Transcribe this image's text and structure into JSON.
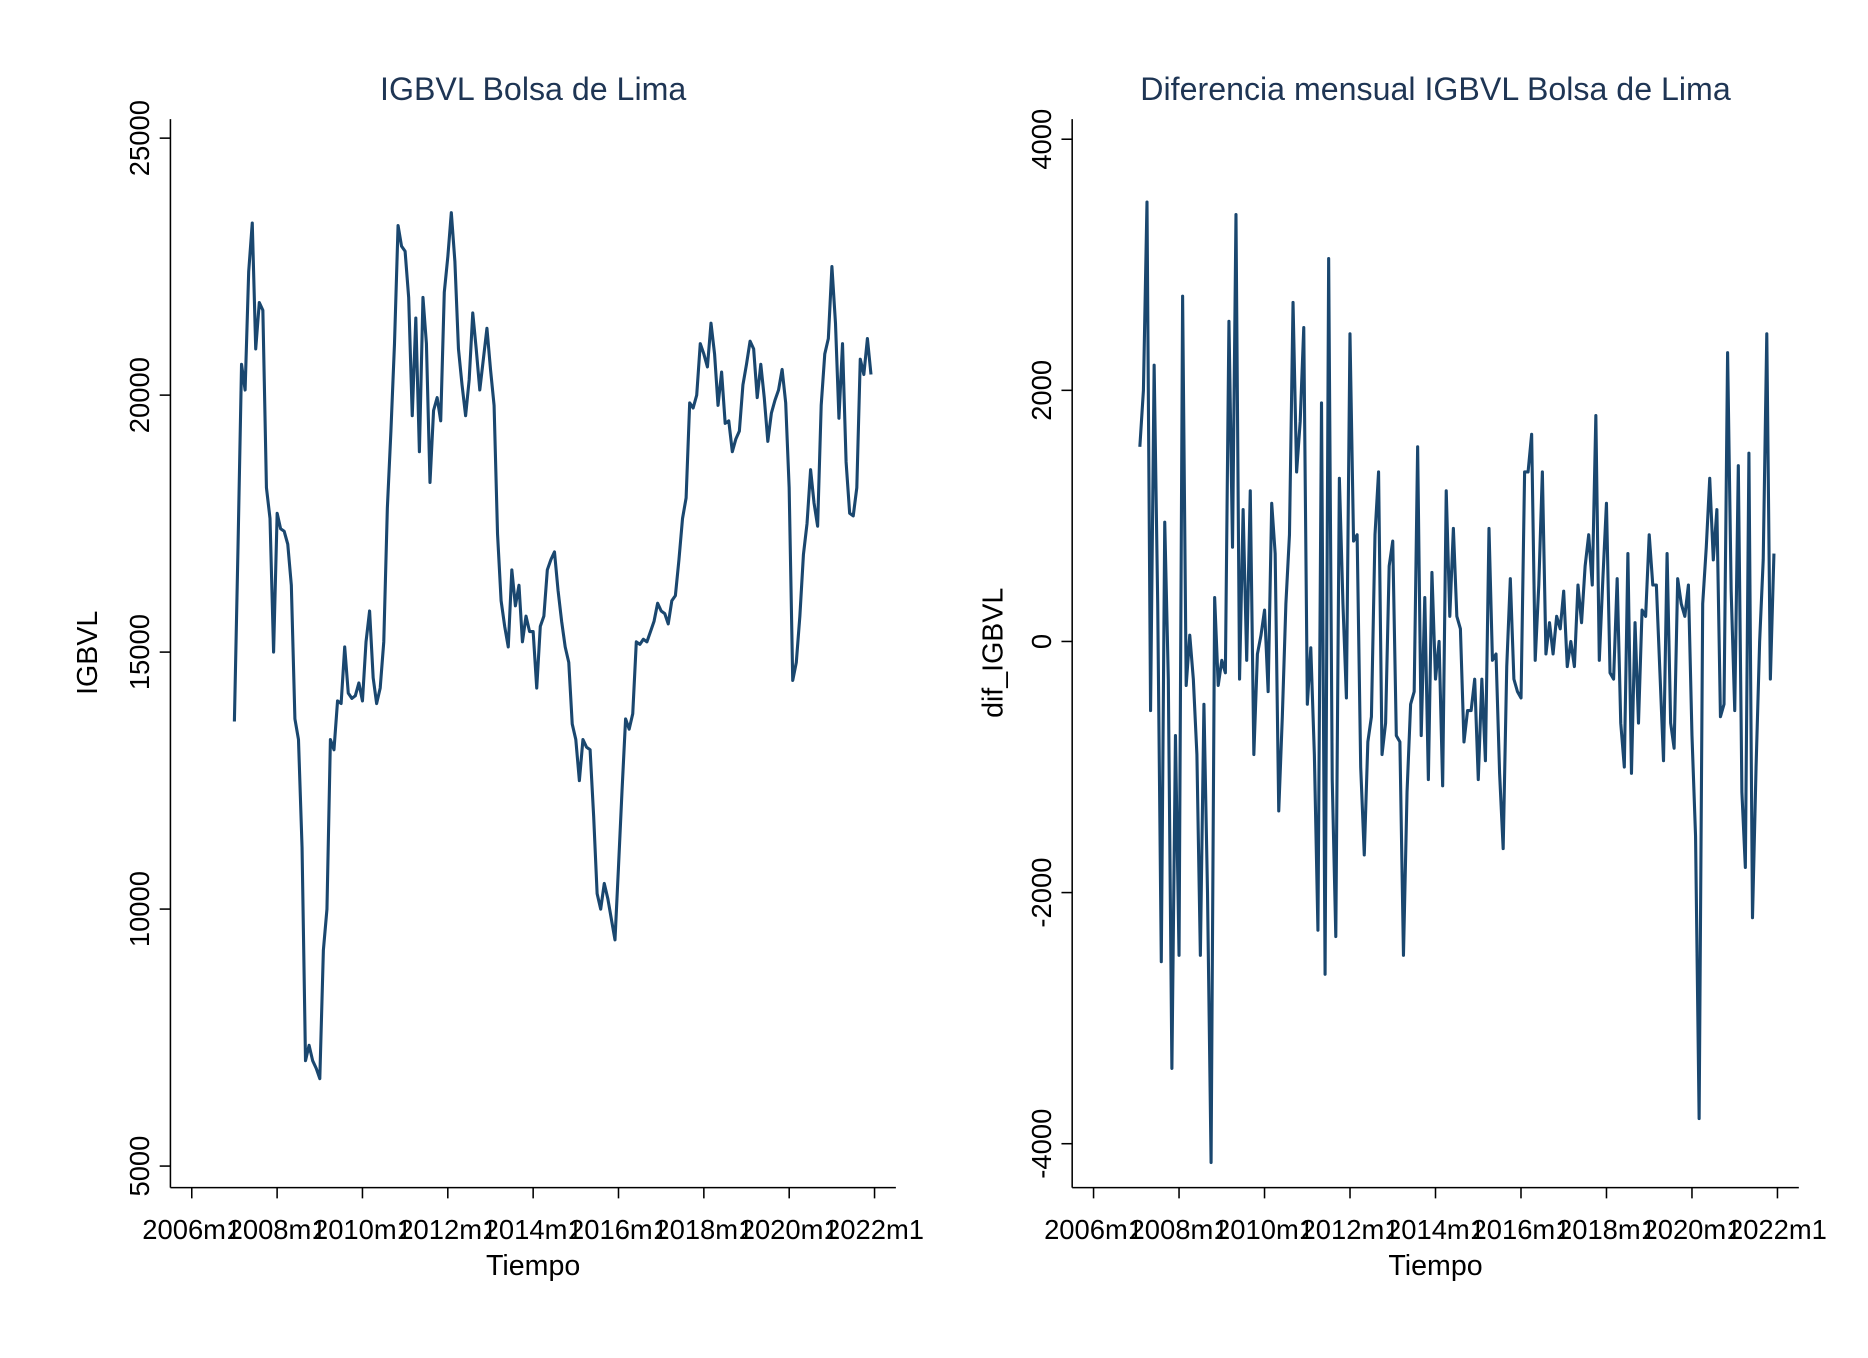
{
  "chart_data": [
    {
      "type": "line",
      "title": "IGBVL Bolsa de Lima",
      "xlabel": "Tiempo",
      "ylabel": "IGBVL",
      "color": "#1a476f",
      "xlim": [
        "2005m7",
        "2022m7"
      ],
      "xticks": [
        "2006m1",
        "2008m1",
        "2010m1",
        "2012m1",
        "2014m1",
        "2016m1",
        "2018m1",
        "2020m1",
        "2022m1"
      ],
      "ylim": [
        4580,
        25370
      ],
      "yticks": [
        5000,
        10000,
        15000,
        20000,
        25000
      ],
      "x": [
        "2007m1",
        "2007m2",
        "2007m3",
        "2007m4",
        "2007m5",
        "2007m6",
        "2007m7",
        "2007m8",
        "2007m9",
        "2007m10",
        "2007m11",
        "2007m12",
        "2008m1",
        "2008m2",
        "2008m3",
        "2008m4",
        "2008m5",
        "2008m6",
        "2008m7",
        "2008m8",
        "2008m9",
        "2008m10",
        "2008m11",
        "2008m12",
        "2009m1",
        "2009m2",
        "2009m3",
        "2009m4",
        "2009m5",
        "2009m6",
        "2009m7",
        "2009m8",
        "2009m9",
        "2009m10",
        "2009m11",
        "2009m12",
        "2010m1",
        "2010m2",
        "2010m3",
        "2010m4",
        "2010m5",
        "2010m6",
        "2010m7",
        "2010m8",
        "2010m9",
        "2010m10",
        "2010m11",
        "2010m12",
        "2011m1",
        "2011m2",
        "2011m3",
        "2011m4",
        "2011m5",
        "2011m6",
        "2011m7",
        "2011m8",
        "2011m9",
        "2011m10",
        "2011m11",
        "2011m12",
        "2012m1",
        "2012m2",
        "2012m3",
        "2012m4",
        "2012m5",
        "2012m6",
        "2012m7",
        "2012m8",
        "2012m9",
        "2012m10",
        "2012m11",
        "2012m12",
        "2013m1",
        "2013m2",
        "2013m3",
        "2013m4",
        "2013m5",
        "2013m6",
        "2013m7",
        "2013m8",
        "2013m9",
        "2013m10",
        "2013m11",
        "2013m12",
        "2014m1",
        "2014m2",
        "2014m3",
        "2014m4",
        "2014m5",
        "2014m6",
        "2014m7",
        "2014m8",
        "2014m9",
        "2014m10",
        "2014m11",
        "2014m12",
        "2015m1",
        "2015m2",
        "2015m3",
        "2015m4",
        "2015m5",
        "2015m6",
        "2015m7",
        "2015m8",
        "2015m9",
        "2015m10",
        "2015m11",
        "2015m12",
        "2016m1",
        "2016m2",
        "2016m3",
        "2016m4",
        "2016m5",
        "2016m6",
        "2016m7",
        "2016m8",
        "2016m9",
        "2016m10",
        "2016m11",
        "2016m12",
        "2017m1",
        "2017m2",
        "2017m3",
        "2017m4",
        "2017m5",
        "2017m6",
        "2017m7",
        "2017m8",
        "2017m9",
        "2017m10",
        "2017m11",
        "2017m12",
        "2018m1",
        "2018m2",
        "2018m3",
        "2018m4",
        "2018m5",
        "2018m6",
        "2018m7",
        "2018m8",
        "2018m9",
        "2018m10",
        "2018m11",
        "2018m12",
        "2019m1",
        "2019m2",
        "2019m3",
        "2019m4",
        "2019m5",
        "2019m6",
        "2019m7",
        "2019m8",
        "2019m9",
        "2019m10",
        "2019m11",
        "2019m12",
        "2020m1",
        "2020m2",
        "2020m3",
        "2020m4",
        "2020m5",
        "2020m6",
        "2020m7",
        "2020m8",
        "2020m9",
        "2020m10",
        "2020m11",
        "2020m12",
        "2021m1",
        "2021m2",
        "2021m3",
        "2021m4",
        "2021m5",
        "2021m6",
        "2021m7",
        "2021m8",
        "2021m9",
        "2021m10",
        "2021m11",
        "2021m12"
      ],
      "values": [
        13650,
        17000,
        20600,
        20100,
        22400,
        23350,
        20900,
        21800,
        21650,
        18200,
        17600,
        15000,
        17700,
        17400,
        17350,
        17100,
        16300,
        13700,
        13300,
        11200,
        7050,
        7350,
        7050,
        6900,
        6700,
        9200,
        10000,
        13300,
        13100,
        14050,
        14000,
        15100,
        14200,
        14100,
        14150,
        14400,
        14050,
        15200,
        15800,
        14500,
        14000,
        14300,
        15200,
        17800,
        19300,
        21000,
        23300,
        22900,
        22800,
        21900,
        19600,
        21500,
        18900,
        21900,
        21000,
        18300,
        19700,
        19950,
        19500,
        22000,
        22700,
        23550,
        22600,
        20900,
        20200,
        19600,
        20300,
        21600,
        20900,
        20100,
        20700,
        21300,
        20500,
        19800,
        17300,
        16000,
        15500,
        15100,
        16600,
        15900,
        16300,
        15200,
        15700,
        15400,
        15400,
        14300,
        15500,
        15700,
        16600,
        16800,
        16950,
        16200,
        15600,
        15100,
        14800,
        13600,
        13300,
        12500,
        13300,
        13150,
        13100,
        11800,
        10300,
        10000,
        10500,
        10200,
        9800,
        9400,
        10800,
        12300,
        13700,
        13500,
        13800,
        15200,
        15150,
        15250,
        15200,
        15400,
        15600,
        15950,
        15800,
        15750,
        15550,
        16000,
        16100,
        16800,
        17600,
        18000,
        19850,
        19750,
        20000,
        21000,
        20800,
        20550,
        21400,
        20800,
        19800,
        20450,
        19450,
        19500,
        18900,
        19150,
        19300,
        20200,
        20600,
        21050,
        20900,
        19950,
        20600,
        19950,
        19100,
        19650,
        19900,
        20100,
        20500,
        19850,
        18200,
        14450,
        14800,
        15700,
        16900,
        17500,
        18550,
        17900,
        17450,
        19800,
        20800,
        21100,
        22500,
        21400,
        19550,
        21000,
        18700,
        17700,
        17650,
        18200,
        20700,
        20400,
        21100,
        20400
      ]
    },
    {
      "type": "line",
      "title": "Diferencia mensual IGBVL Bolsa de Lima",
      "xlabel": "Tiempo",
      "ylabel": "dif_IGBVL",
      "color": "#1a476f",
      "xlim": [
        "2005m7",
        "2022m7"
      ],
      "xticks": [
        "2006m1",
        "2008m1",
        "2010m1",
        "2012m1",
        "2014m1",
        "2016m1",
        "2018m1",
        "2020m1",
        "2022m1"
      ],
      "ylim": [
        -4350,
        4160
      ],
      "yticks": [
        -4000,
        -2000,
        0,
        2000,
        4000
      ],
      "x": [
        "2007m2",
        "2007m3",
        "2007m4",
        "2007m5",
        "2007m6",
        "2007m7",
        "2007m8",
        "2007m9",
        "2007m10",
        "2007m11",
        "2007m12",
        "2008m1",
        "2008m2",
        "2008m3",
        "2008m4",
        "2008m5",
        "2008m6",
        "2008m7",
        "2008m8",
        "2008m9",
        "2008m10",
        "2008m11",
        "2008m12",
        "2009m1",
        "2009m2",
        "2009m3",
        "2009m4",
        "2009m5",
        "2009m6",
        "2009m7",
        "2009m8",
        "2009m9",
        "2009m10",
        "2009m11",
        "2009m12",
        "2010m1",
        "2010m2",
        "2010m3",
        "2010m4",
        "2010m5",
        "2010m6",
        "2010m7",
        "2010m8",
        "2010m9",
        "2010m10",
        "2010m11",
        "2010m12",
        "2011m1",
        "2011m2",
        "2011m3",
        "2011m4",
        "2011m5",
        "2011m6",
        "2011m7",
        "2011m8",
        "2011m9",
        "2011m10",
        "2011m11",
        "2011m12",
        "2012m1",
        "2012m2",
        "2012m3",
        "2012m4",
        "2012m5",
        "2012m6",
        "2012m7",
        "2012m8",
        "2012m9",
        "2012m10",
        "2012m11",
        "2012m12",
        "2013m1",
        "2013m2",
        "2013m3",
        "2013m4",
        "2013m5",
        "2013m6",
        "2013m7",
        "2013m8",
        "2013m9",
        "2013m10",
        "2013m11",
        "2013m12",
        "2014m1",
        "2014m2",
        "2014m3",
        "2014m4",
        "2014m5",
        "2014m6",
        "2014m7",
        "2014m8",
        "2014m9",
        "2014m10",
        "2014m11",
        "2014m12",
        "2015m1",
        "2015m2",
        "2015m3",
        "2015m4",
        "2015m5",
        "2015m6",
        "2015m7",
        "2015m8",
        "2015m9",
        "2015m10",
        "2015m11",
        "2015m12",
        "2016m1",
        "2016m2",
        "2016m3",
        "2016m4",
        "2016m5",
        "2016m6",
        "2016m7",
        "2016m8",
        "2016m9",
        "2016m10",
        "2016m11",
        "2016m12",
        "2017m1",
        "2017m2",
        "2017m3",
        "2017m4",
        "2017m5",
        "2017m6",
        "2017m7",
        "2017m8",
        "2017m9",
        "2017m10",
        "2017m11",
        "2017m12",
        "2018m1",
        "2018m2",
        "2018m3",
        "2018m4",
        "2018m5",
        "2018m6",
        "2018m7",
        "2018m8",
        "2018m9",
        "2018m10",
        "2018m11",
        "2018m12",
        "2019m1",
        "2019m2",
        "2019m3",
        "2019m4",
        "2019m5",
        "2019m6",
        "2019m7",
        "2019m8",
        "2019m9",
        "2019m10",
        "2019m11",
        "2019m12",
        "2020m1",
        "2020m2",
        "2020m3",
        "2020m4",
        "2020m5",
        "2020m6",
        "2020m7",
        "2020m8",
        "2020m9",
        "2020m10",
        "2020m11",
        "2020m12",
        "2021m1",
        "2021m2",
        "2021m3",
        "2021m4",
        "2021m5",
        "2021m6",
        "2021m7",
        "2021m8",
        "2021m9",
        "2021m10",
        "2021m11",
        "2021m12"
      ],
      "values": [
        1550,
        2000,
        3500,
        -550,
        2200,
        300,
        -2550,
        950,
        -300,
        -3400,
        -750,
        -2500,
        2750,
        -350,
        50,
        -300,
        -900,
        -2500,
        -500,
        -2000,
        -4150,
        350,
        -350,
        -150,
        -250,
        2550,
        750,
        3400,
        -300,
        1050,
        -150,
        1200,
        -900,
        -100,
        50,
        250,
        -400,
        1100,
        700,
        -1350,
        -600,
        300,
        850,
        2700,
        1350,
        1750,
        2500,
        -500,
        -50,
        -900,
        -2300,
        1900,
        -2650,
        3050,
        -1100,
        -2350,
        1300,
        300,
        -450,
        2450,
        800,
        850,
        -1000,
        -1700,
        -800,
        -600,
        850,
        1350,
        -900,
        -650,
        600,
        800,
        -750,
        -800,
        -2500,
        -1200,
        -500,
        -400,
        1550,
        -750,
        350,
        -1100,
        550,
        -300,
        0,
        -1150,
        1200,
        200,
        900,
        200,
        100,
        -800,
        -550,
        -550,
        -300,
        -1100,
        -300,
        -950,
        900,
        -150,
        -100,
        -1050,
        -1650,
        -200,
        500,
        -300,
        -400,
        -450,
        1350,
        1350,
        1650,
        -150,
        450,
        1350,
        -100,
        150,
        -100,
        200,
        100,
        400,
        -200,
        0,
        -200,
        450,
        150,
        600,
        850,
        450,
        1800,
        -150,
        500,
        1100,
        -250,
        -300,
        500,
        -650,
        -1000,
        700,
        -1050,
        150,
        -650,
        250,
        200,
        850,
        450,
        450,
        -250,
        -950,
        700,
        -650,
        -850,
        500,
        300,
        200,
        450,
        -750,
        -1550,
        -3800,
        300,
        750,
        1300,
        650,
        1050,
        -600,
        -500,
        2300,
        400,
        -550,
        1400,
        -1200,
        -1800,
        1500,
        -2200,
        -1000,
        0,
        650,
        2450,
        -300,
        700
      ]
    }
  ]
}
